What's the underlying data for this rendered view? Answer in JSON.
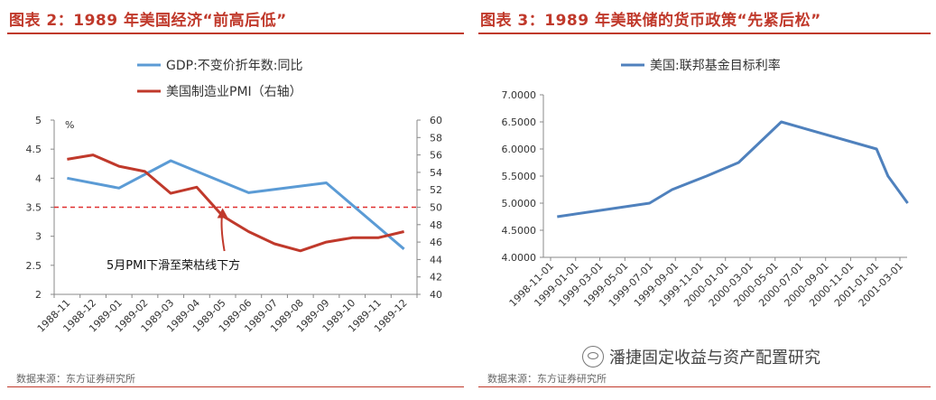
{
  "left": {
    "title": "图表 2：1989 年美国经济“前高后低”",
    "source": "数据来源：东方证券研究所",
    "chart_data": {
      "type": "line",
      "categories": [
        "1988-11",
        "1988-12",
        "1989-01",
        "1989-02",
        "1989-03",
        "1989-04",
        "1989-05",
        "1989-06",
        "1989-07",
        "1989-08",
        "1989-09",
        "1989-10",
        "1989-11",
        "1989-12"
      ],
      "series": [
        {
          "name": "GDP:不变价折年数:同比",
          "axis": "left",
          "color": "#5b9bd5",
          "values": [
            4.0,
            null,
            3.83,
            null,
            4.3,
            null,
            null,
            3.75,
            null,
            null,
            3.92,
            null,
            null,
            2.78
          ]
        },
        {
          "name": "美国制造业PMI（右轴）",
          "axis": "right",
          "color": "#c0392b",
          "values": [
            55.5,
            56.0,
            54.7,
            54.1,
            51.6,
            52.3,
            49.0,
            47.2,
            45.8,
            45.0,
            46.0,
            46.5,
            46.5,
            47.2
          ]
        }
      ],
      "left_axis": {
        "min": 2,
        "max": 5,
        "step": 0.5,
        "ticks": [
          "5",
          "4.5",
          "4",
          "3.5",
          "3",
          "2.5",
          "2"
        ],
        "unit_label": "%"
      },
      "right_axis": {
        "min": 40,
        "max": 60,
        "step": 2,
        "ticks": [
          "60",
          "58",
          "56",
          "54",
          "52",
          "50",
          "48",
          "46",
          "44",
          "42",
          "40"
        ]
      },
      "reference_line": {
        "axis": "right",
        "value": 50,
        "style": "dashed",
        "color": "#e03030"
      },
      "annotation": {
        "text": "5月PMI下滑至荣枯线下方",
        "points_to": "1989-05"
      },
      "legend": "top"
    }
  },
  "right": {
    "title": "图表 3：1989 年美联储的货币政策“先紧后松”",
    "source": "数据来源：东方证券研究所",
    "watermark": "潘捷固定收益与资产配置研究",
    "chart_data": {
      "type": "line",
      "series": [
        {
          "name": "美国:联邦基金目标利率",
          "color": "#4f81bd",
          "points": [
            {
              "x": "1998-11-17",
              "y": 4.75
            },
            {
              "x": "1999-06-30",
              "y": 5.0
            },
            {
              "x": "1999-08-24",
              "y": 5.25
            },
            {
              "x": "1999-11-16",
              "y": 5.5
            },
            {
              "x": "2000-02-02",
              "y": 5.75
            },
            {
              "x": "2000-05-16",
              "y": 6.5
            },
            {
              "x": "2001-01-03",
              "y": 6.0
            },
            {
              "x": "2001-01-31",
              "y": 5.5
            },
            {
              "x": "2001-03-20",
              "y": 5.0
            }
          ]
        }
      ],
      "x_ticks": [
        "1998-11-01",
        "1999-01-01",
        "1999-03-01",
        "1999-05-01",
        "1999-07-01",
        "1999-09-01",
        "1999-11-01",
        "2000-01-01",
        "2000-03-01",
        "2000-05-01",
        "2000-07-01",
        "2000-09-01",
        "2000-11-01",
        "2001-01-01",
        "2001-03-01"
      ],
      "y_axis": {
        "min": 4.0,
        "max": 7.0,
        "step": 0.5,
        "ticks": [
          "7.0000",
          "6.5000",
          "6.0000",
          "5.5000",
          "5.0000",
          "4.5000",
          "4.0000"
        ]
      },
      "legend": "top"
    }
  }
}
